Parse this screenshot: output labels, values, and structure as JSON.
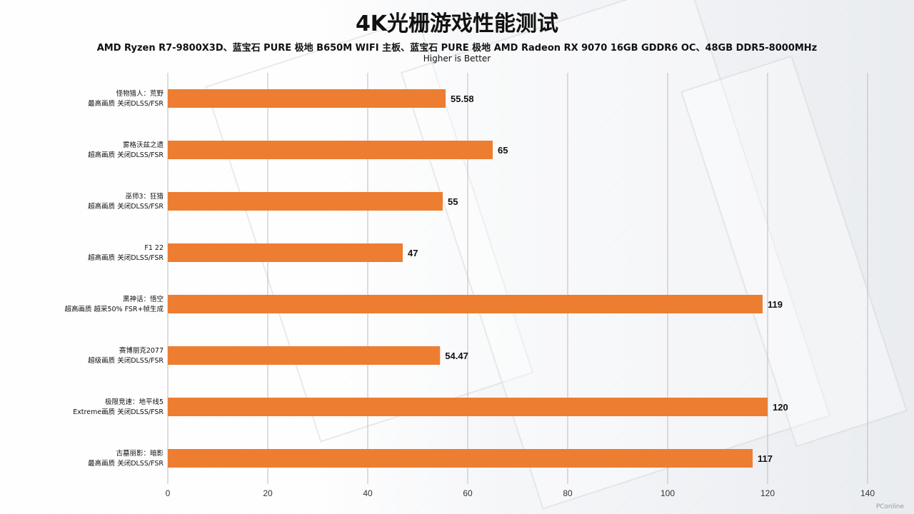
{
  "title": "4K光栅游戏性能测试",
  "subtitle": "AMD Ryzen R7-9800X3D、蓝宝石 PURE 极地 B650M WIFI 主板、蓝宝石 PURE 极地 AMD Radeon  RX 9070 16GB GDDR6 OC、48GB DDR5-8000MHz",
  "subtitle2": "Higher is Better",
  "watermark": "PConline",
  "colors": {
    "bar": "#ed7d31",
    "grid": "#b8bcc3",
    "axis_text": "#333333",
    "label_text": "#111111"
  },
  "chart_data": {
    "type": "bar",
    "orientation": "horizontal",
    "categories": [
      [
        "怪物猎人：荒野",
        "最高画质 关闭DLSS/FSR"
      ],
      [
        "雾格沃兹之遗",
        "超高画质 关闭DLSS/FSR"
      ],
      [
        "巫师3：狂猎",
        "超高画质 关闭DLSS/FSR"
      ],
      [
        "F1 22",
        "超高画质 关闭DLSS/FSR"
      ],
      [
        "黑神话：悟空",
        "超高画质 超采50% FSR+帧生成"
      ],
      [
        "赛博朋克2077",
        "超级画质 关闭DLSS/FSR"
      ],
      [
        "极限竞速：地平线5",
        "Extreme画质 关闭DLSS/FSR"
      ],
      [
        "古墓丽影：暗影",
        "最高画质 关闭DLSS/FSR"
      ]
    ],
    "values": [
      55.58,
      65,
      55,
      47,
      119,
      54.47,
      120,
      117
    ],
    "value_labels": [
      "55.58",
      "65",
      "55",
      "47",
      "119",
      "54.47",
      "120",
      "117"
    ],
    "xlim": [
      0,
      140
    ],
    "xticks": [
      0,
      20,
      40,
      60,
      80,
      100,
      120,
      140
    ],
    "xlabel": "",
    "ylabel": "",
    "grid": "vertical",
    "legend": "none"
  }
}
